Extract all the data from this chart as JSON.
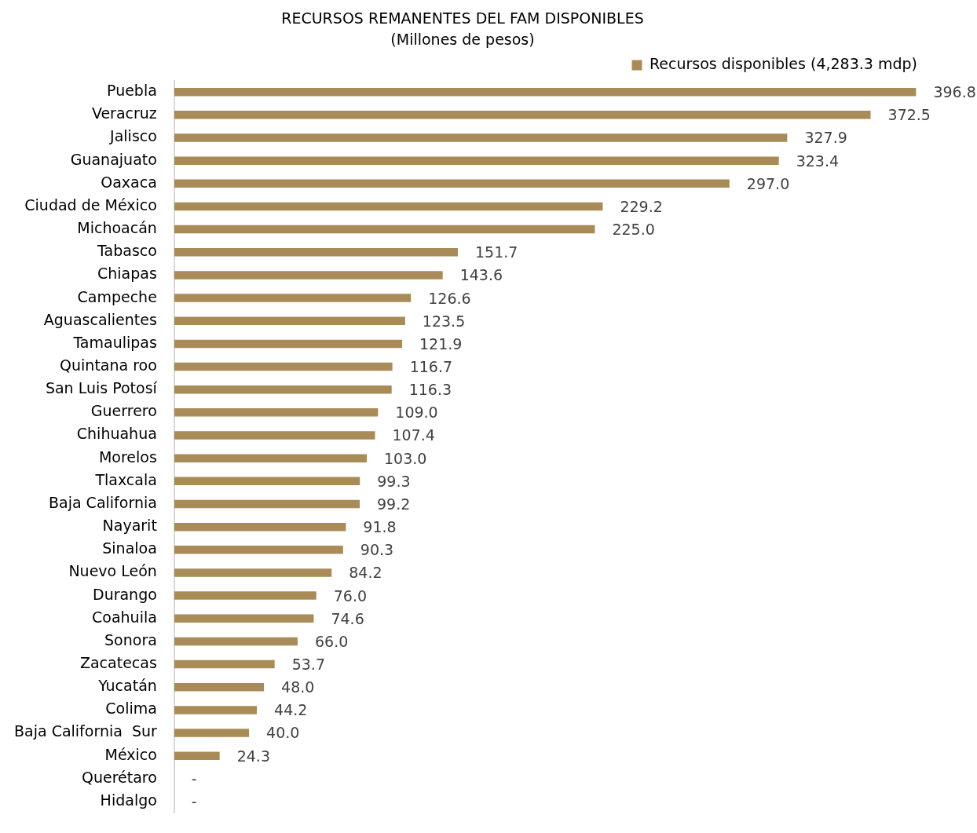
{
  "chart_data": {
    "type": "bar",
    "orientation": "horizontal",
    "title": "RECURSOS REMANENTES DEL FAM DISPONIBLES",
    "subtitle": "(Millones de pesos)",
    "categories": [
      "Puebla",
      "Veracruz",
      "Jalisco",
      "Guanajuato",
      "Oaxaca",
      "Ciudad de México",
      "Michoacán",
      "Tabasco",
      "Chiapas",
      "Campeche",
      "Aguascalientes",
      "Tamaulipas",
      "Quintana roo",
      "San Luis Potosí",
      "Guerrero",
      "Chihuahua",
      "Morelos",
      "Tlaxcala",
      "Baja California",
      "Nayarit",
      "Sinaloa",
      "Nuevo León",
      "Durango",
      "Coahuila",
      "Sonora",
      "Zacatecas",
      "Yucatán",
      "Colima",
      "Baja California  Sur",
      "México",
      "Querétaro",
      "Hidalgo"
    ],
    "series": [
      {
        "name": "Recursos disponibles (4,283.3 mdp)",
        "color": "#a88b57",
        "values": [
          396.8,
          372.5,
          327.9,
          323.4,
          297.0,
          229.2,
          225.0,
          151.7,
          143.6,
          126.6,
          123.5,
          121.9,
          116.7,
          116.3,
          109.0,
          107.4,
          103.0,
          99.3,
          99.2,
          91.8,
          90.3,
          84.2,
          76.0,
          74.6,
          66.0,
          53.7,
          48.0,
          44.2,
          40.0,
          24.3,
          0,
          0
        ],
        "value_labels": [
          "396.8",
          "372.5",
          "327.9",
          "323.4",
          "297.0",
          "229.2",
          "225.0",
          "151.7",
          "143.6",
          "126.6",
          "123.5",
          "121.9",
          "116.7",
          "116.3",
          "109.0",
          "107.4",
          "103.0",
          "99.3",
          "99.2",
          "91.8",
          "90.3",
          "84.2",
          "76.0",
          "74.6",
          "66.0",
          "53.7",
          "48.0",
          "44.2",
          "40.0",
          "24.3",
          "-",
          "-"
        ]
      }
    ],
    "legend": "top right",
    "tick_labels": "y",
    "grid": false
  }
}
